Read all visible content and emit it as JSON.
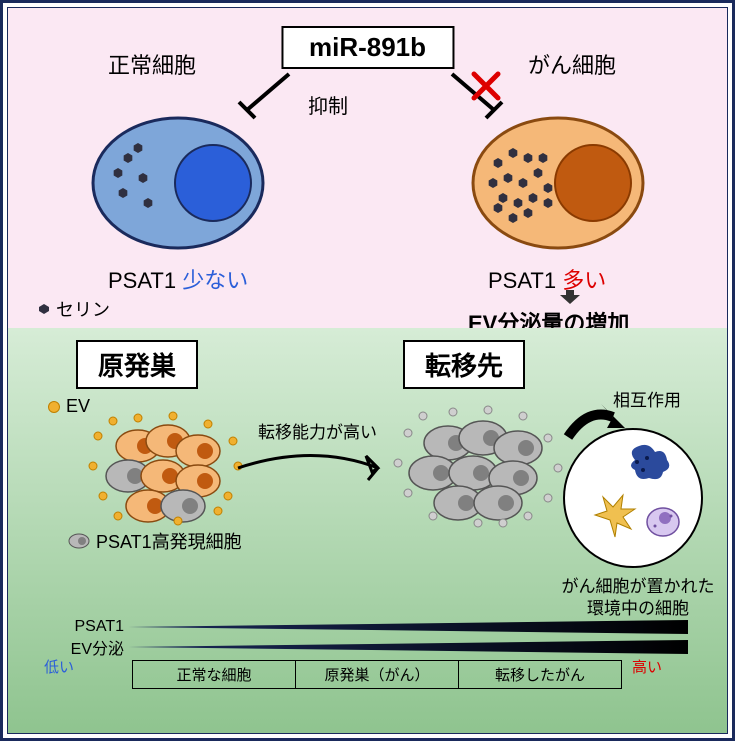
{
  "top": {
    "bg_color": "#fbe8f3",
    "mir_label": "miR-891b",
    "normal_cell_label": "正常細胞",
    "cancer_cell_label": "がん細胞",
    "inhibit_label": "抑制",
    "psat_left_prefix": "PSAT1 ",
    "psat_left_value": "少ない",
    "psat_right_prefix": "PSAT1 ",
    "psat_right_value": "多い",
    "ev_increase": "EV分泌量の増加",
    "serine_legend": "セリン",
    "normal_cell": {
      "body_fill": "#7ea6d9",
      "body_stroke": "#1a2a5c",
      "nucleus_fill": "#2b5fd9",
      "nucleus_stroke": "#1a2a5c",
      "serine_count": 6
    },
    "cancer_cell": {
      "body_fill": "#f5b878",
      "body_stroke": "#8a4a10",
      "nucleus_fill": "#c05a10",
      "nucleus_stroke": "#8a3a00",
      "serine_count": 16
    },
    "cross_color": "#d00000"
  },
  "bottom": {
    "bg_gradient_top": "#d6ecd6",
    "bg_gradient_bot": "#8fc48f",
    "primary_label": "原発巣",
    "metastasis_label": "転移先",
    "ev_legend": "EV",
    "transfer_label": "転移能力が高い",
    "interaction_label": "相互作用",
    "psat_high_legend": "PSAT1高発現細胞",
    "env_label_line1": "がん細胞が置かれた",
    "env_label_line2": "環境中の細胞",
    "wedge1_label": "PSAT1",
    "wedge2_label": "EV分泌",
    "scale_low": "低い",
    "scale_high": "高い",
    "scale_boxes": [
      "正常な細胞",
      "原発巣（がん）",
      "転移したがん"
    ],
    "primary_cluster": {
      "cancer_fill": "#f5b878",
      "cancer_stroke": "#8a4a10",
      "gray_fill": "#b8b8b8",
      "gray_stroke": "#555",
      "ev_fill": "#f0b030",
      "ev_stroke": "#c08000"
    },
    "meta_cluster": {
      "gray_fill": "#b8b8b8",
      "gray_stroke": "#555",
      "ev_fill": "#cfcfcf",
      "ev_stroke": "#888"
    },
    "env_cells": {
      "dc_fill": "#2b4a9c",
      "fib_fill": "#f0c050",
      "mac_fill": "#d8c8f0",
      "mac_stroke": "#7050a0"
    }
  }
}
